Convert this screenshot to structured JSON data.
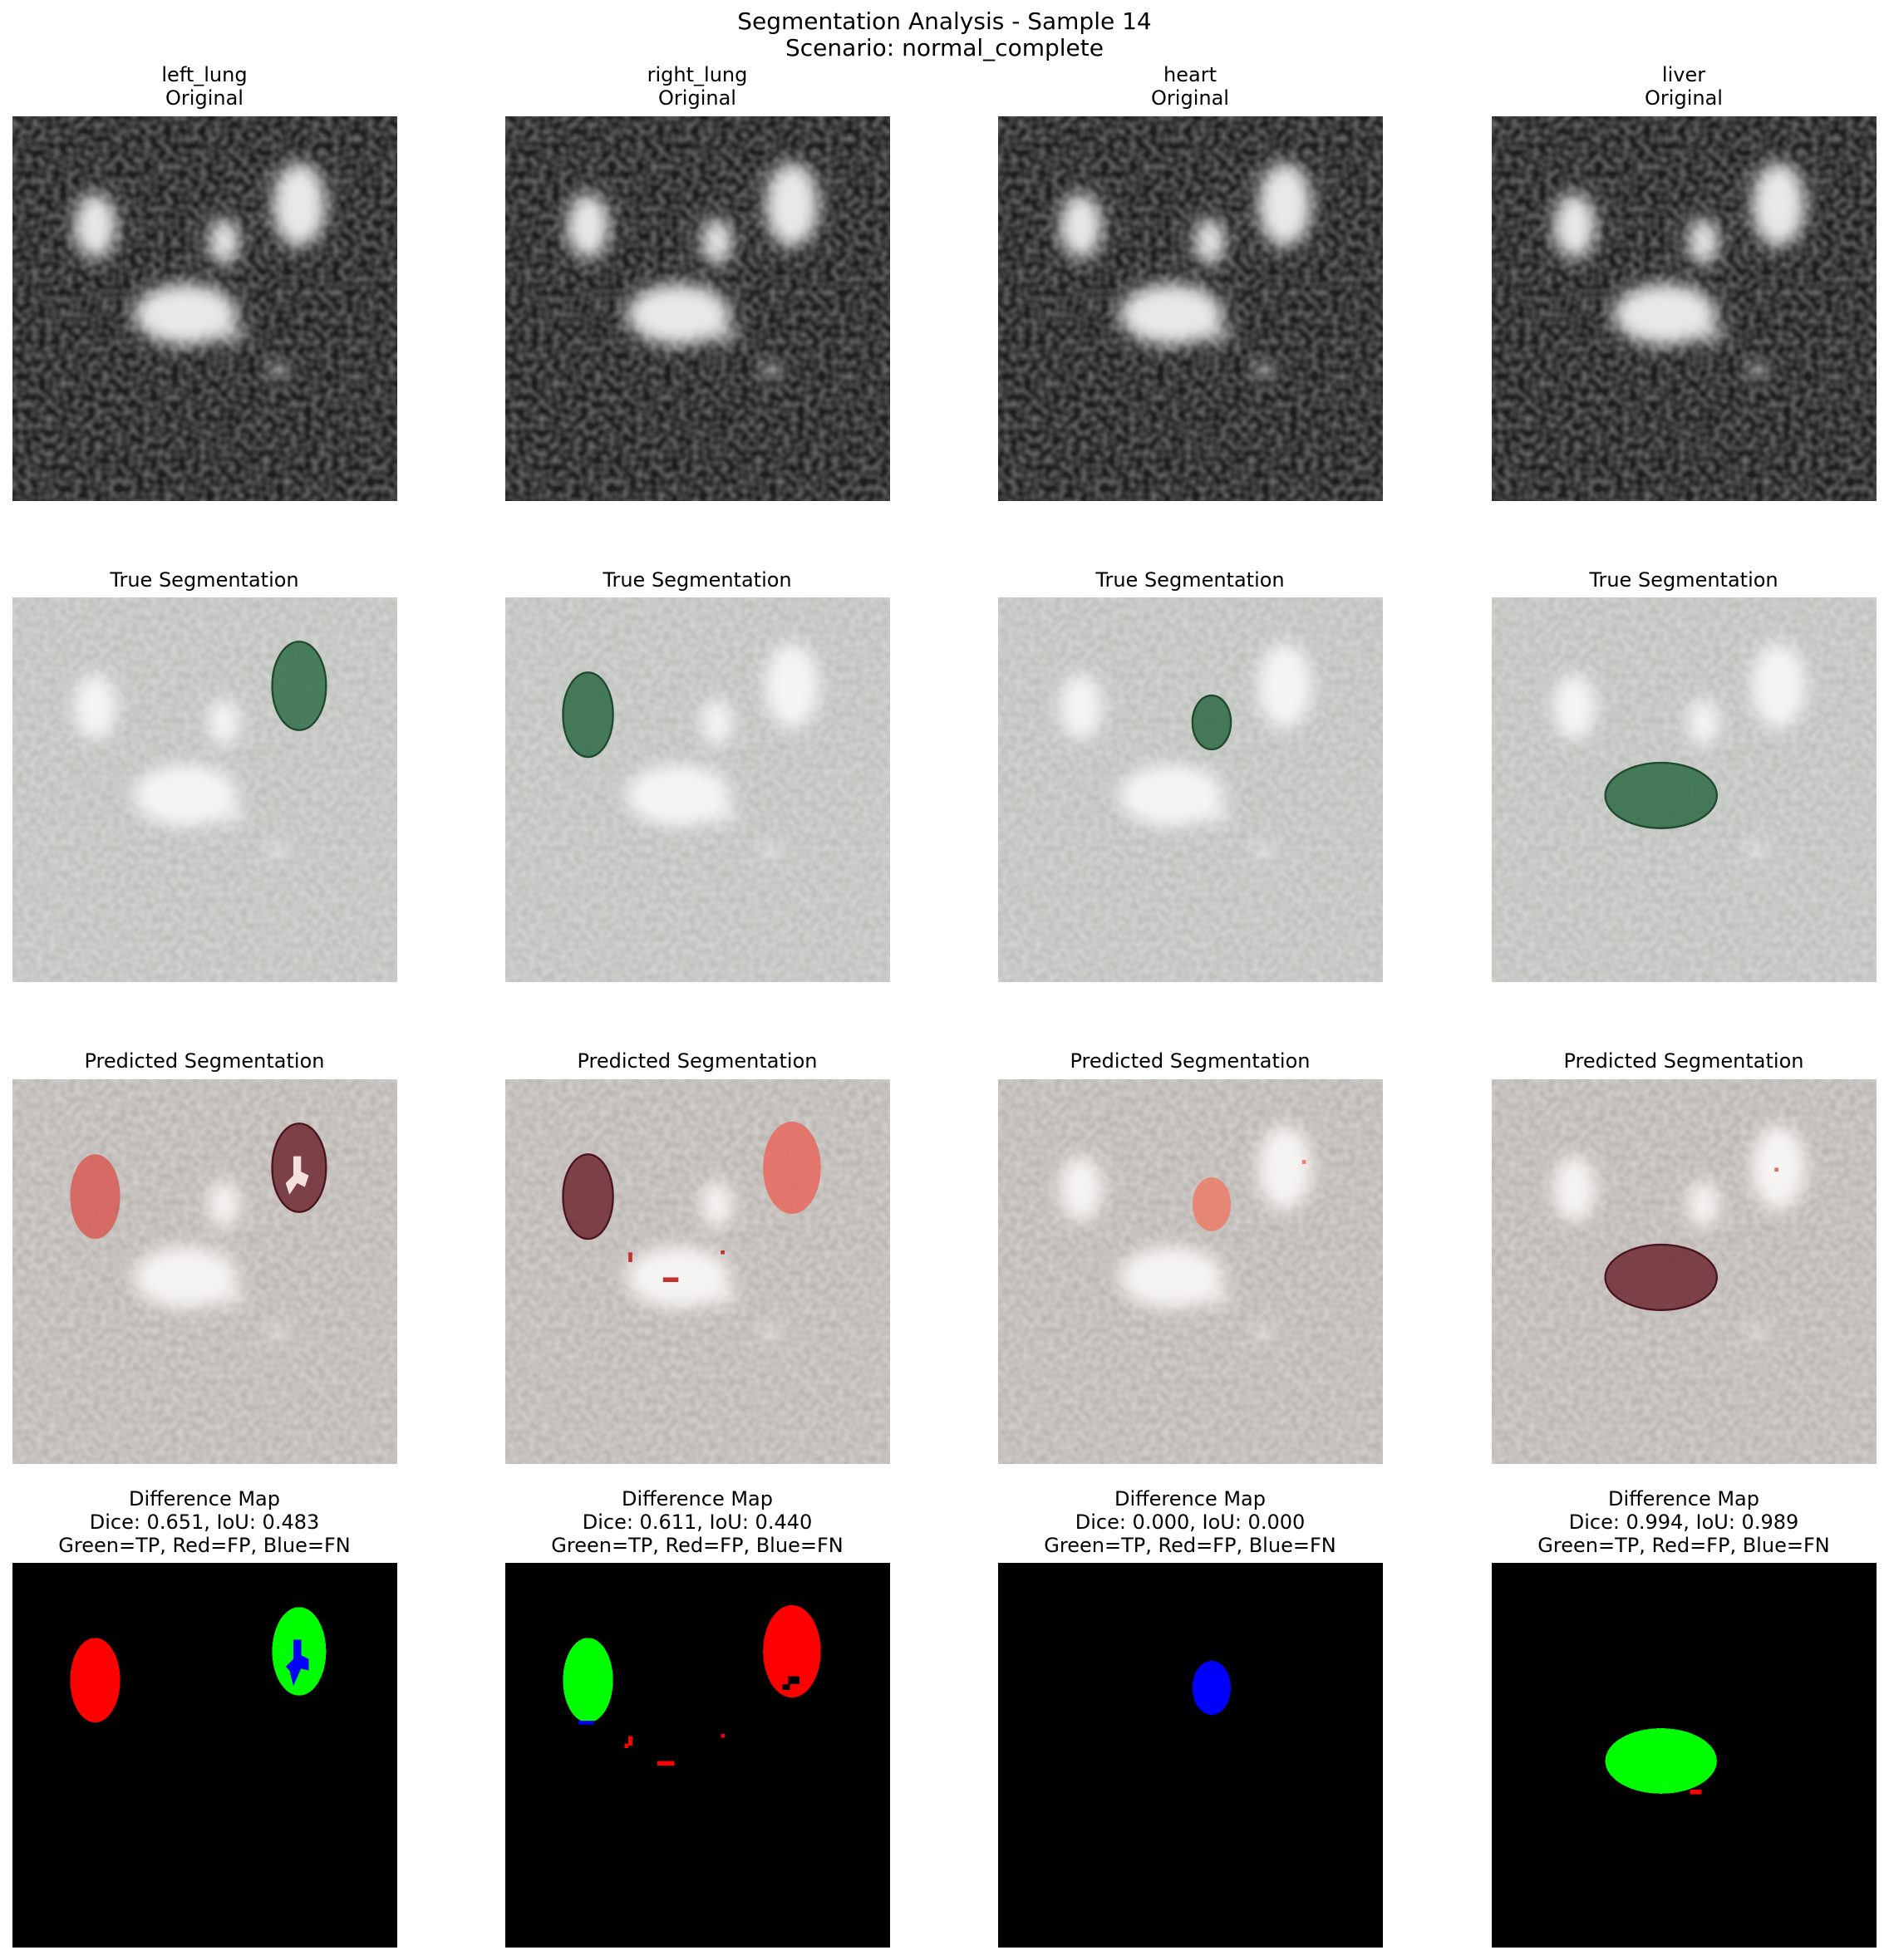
{
  "figure": {
    "title_line1": "Segmentation Analysis - Sample 14",
    "title_line2": "Scenario: normal_complete"
  },
  "columns": [
    {
      "organ": "left_lung",
      "original_label": "Original",
      "true_label": "True Segmentation",
      "pred_label": "Predicted Segmentation",
      "diff_label": "Difference Map",
      "metrics": "Dice: 0.651, IoU: 0.483",
      "legend": "Green=TP, Red=FP, Blue=FN"
    },
    {
      "organ": "right_lung",
      "original_label": "Original",
      "true_label": "True Segmentation",
      "pred_label": "Predicted Segmentation",
      "diff_label": "Difference Map",
      "metrics": "Dice: 0.611, IoU: 0.440",
      "legend": "Green=TP, Red=FP, Blue=FN"
    },
    {
      "organ": "heart",
      "original_label": "Original",
      "true_label": "True Segmentation",
      "pred_label": "Predicted Segmentation",
      "diff_label": "Difference Map",
      "metrics": "Dice: 0.000, IoU: 0.000",
      "legend": "Green=TP, Red=FP, Blue=FN"
    },
    {
      "organ": "liver",
      "original_label": "Original",
      "true_label": "True Segmentation",
      "pred_label": "Predicted Segmentation",
      "diff_label": "Difference Map",
      "metrics": "Dice: 0.994, IoU: 0.989",
      "legend": "Green=TP, Red=FP, Blue=FN"
    }
  ],
  "colors": {
    "tp": "#00ff00",
    "fp": "#ff0000",
    "fn": "#0000ff",
    "true_overlay": "#2d6a45",
    "pred_overlay_dark": "#6e2a33",
    "pred_overlay_light": "#e8685e"
  }
}
